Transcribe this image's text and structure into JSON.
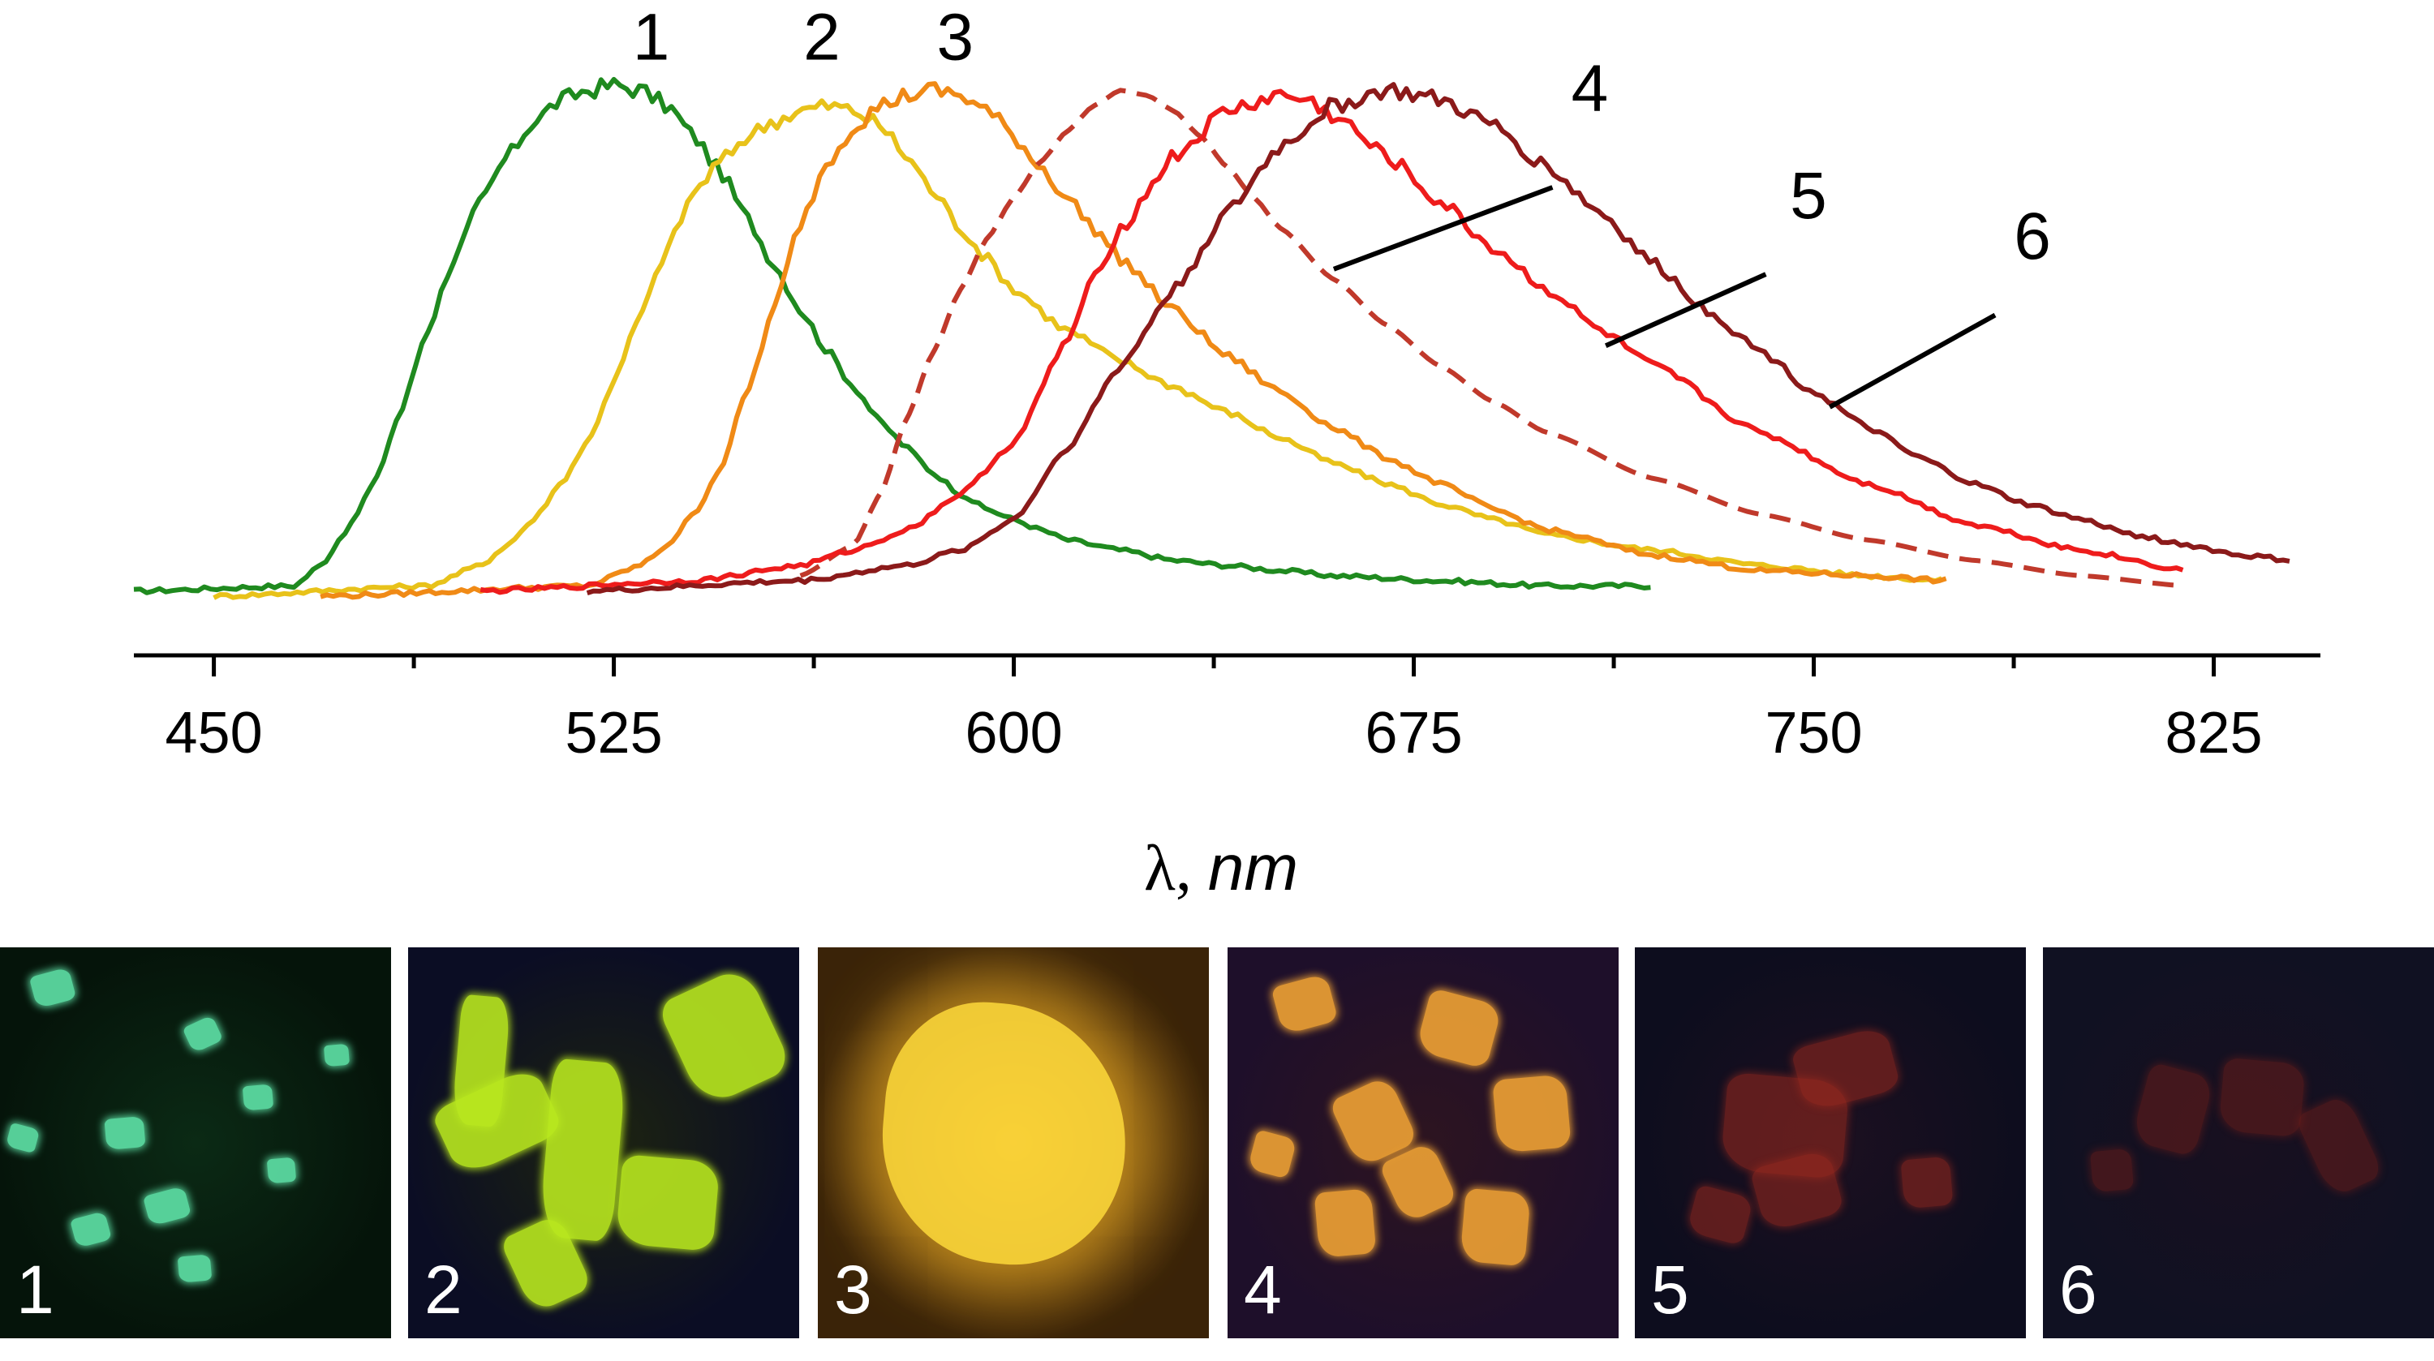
{
  "chart_data": {
    "type": "line",
    "xlabel_symbol": "λ",
    "xlabel_sep": ", ",
    "xlabel_unit": "nm",
    "xlim": [
      435,
      845
    ],
    "ylim": [
      0,
      1.07
    ],
    "x_ticks": [
      450,
      525,
      600,
      675,
      750,
      825
    ],
    "x_tick_labels": [
      "450",
      "525",
      "600",
      "675",
      "750",
      "825"
    ],
    "x_minor_ticks": [
      487.5,
      562.5,
      637.5,
      712.5,
      787.5
    ],
    "series": [
      {
        "name": "1",
        "color": "#1f8a1f",
        "dashed": false,
        "x": [
          435,
          465,
          470,
          475,
          480,
          485,
          490,
          495,
          500,
          505,
          510,
          515,
          520,
          525,
          530,
          535,
          540,
          545,
          550,
          555,
          560,
          565,
          570,
          575,
          580,
          585,
          590,
          595,
          600,
          605,
          610,
          620,
          630,
          640,
          650,
          660,
          680,
          700,
          720
        ],
        "y": [
          0.01,
          0.02,
          0.06,
          0.13,
          0.22,
          0.36,
          0.52,
          0.66,
          0.77,
          0.86,
          0.93,
          0.97,
          0.99,
          1.0,
          0.99,
          0.96,
          0.9,
          0.83,
          0.74,
          0.65,
          0.56,
          0.48,
          0.41,
          0.34,
          0.29,
          0.24,
          0.2,
          0.17,
          0.15,
          0.13,
          0.11,
          0.09,
          0.07,
          0.06,
          0.05,
          0.04,
          0.03,
          0.02,
          0.02
        ]
      },
      {
        "name": "2",
        "color": "#e8c21a",
        "dashed": false,
        "x": [
          450,
          490,
          500,
          505,
          510,
          515,
          520,
          525,
          530,
          535,
          540,
          545,
          550,
          555,
          560,
          565,
          570,
          575,
          580,
          585,
          590,
          595,
          600,
          610,
          620,
          630,
          640,
          650,
          660,
          670,
          680,
          690,
          700,
          720,
          740,
          760,
          775
        ],
        "y": [
          0.0,
          0.02,
          0.06,
          0.1,
          0.15,
          0.22,
          0.3,
          0.42,
          0.55,
          0.68,
          0.79,
          0.85,
          0.9,
          0.93,
          0.95,
          0.96,
          0.95,
          0.92,
          0.86,
          0.79,
          0.72,
          0.66,
          0.6,
          0.52,
          0.46,
          0.41,
          0.36,
          0.31,
          0.26,
          0.22,
          0.18,
          0.15,
          0.12,
          0.09,
          0.06,
          0.04,
          0.03
        ]
      },
      {
        "name": "3",
        "color": "#f08a16",
        "dashed": false,
        "x": [
          470,
          520,
          530,
          535,
          540,
          545,
          550,
          555,
          560,
          565,
          570,
          575,
          580,
          585,
          590,
          595,
          600,
          605,
          610,
          615,
          620,
          630,
          640,
          650,
          660,
          670,
          680,
          690,
          700,
          720,
          740,
          760,
          775
        ],
        "y": [
          0.0,
          0.02,
          0.06,
          0.1,
          0.16,
          0.25,
          0.4,
          0.56,
          0.73,
          0.85,
          0.92,
          0.96,
          0.98,
          0.99,
          0.98,
          0.95,
          0.9,
          0.84,
          0.78,
          0.72,
          0.66,
          0.56,
          0.47,
          0.4,
          0.33,
          0.27,
          0.22,
          0.17,
          0.13,
          0.08,
          0.05,
          0.04,
          0.03
        ]
      },
      {
        "name": "4",
        "color": "#c0392b",
        "dashed": true,
        "x": [
          560,
          570,
          575,
          580,
          585,
          590,
          595,
          600,
          605,
          610,
          615,
          620,
          625,
          630,
          635,
          640,
          645,
          650,
          660,
          670,
          680,
          690,
          700,
          720,
          740,
          760,
          780,
          800,
          820
        ],
        "y": [
          0.04,
          0.1,
          0.2,
          0.35,
          0.48,
          0.6,
          0.7,
          0.78,
          0.85,
          0.91,
          0.96,
          0.99,
          0.98,
          0.95,
          0.9,
          0.84,
          0.78,
          0.72,
          0.62,
          0.53,
          0.45,
          0.38,
          0.32,
          0.23,
          0.16,
          0.11,
          0.07,
          0.04,
          0.02
        ]
      },
      {
        "name": "5",
        "color": "#ee1c1c",
        "dashed": false,
        "x": [
          500,
          540,
          560,
          570,
          580,
          590,
          600,
          610,
          615,
          620,
          630,
          640,
          650,
          655,
          660,
          670,
          680,
          690,
          700,
          710,
          720,
          740,
          760,
          780,
          800,
          820
        ],
        "y": [
          0.01,
          0.03,
          0.06,
          0.09,
          0.13,
          0.2,
          0.3,
          0.5,
          0.62,
          0.72,
          0.86,
          0.95,
          0.98,
          0.97,
          0.94,
          0.86,
          0.77,
          0.68,
          0.6,
          0.52,
          0.45,
          0.32,
          0.22,
          0.14,
          0.09,
          0.05
        ]
      },
      {
        "name": "6",
        "color": "#8b1a1a",
        "dashed": false,
        "x": [
          520,
          560,
          580,
          590,
          600,
          610,
          620,
          630,
          640,
          650,
          660,
          670,
          680,
          690,
          700,
          710,
          720,
          730,
          740,
          750,
          760,
          770,
          780,
          790,
          800,
          810,
          820,
          830,
          840
        ],
        "y": [
          0.01,
          0.03,
          0.06,
          0.09,
          0.15,
          0.29,
          0.45,
          0.6,
          0.75,
          0.88,
          0.96,
          0.99,
          0.97,
          0.92,
          0.84,
          0.75,
          0.65,
          0.56,
          0.48,
          0.4,
          0.33,
          0.27,
          0.22,
          0.18,
          0.15,
          0.12,
          0.1,
          0.08,
          0.07
        ]
      }
    ],
    "curve_labels": [
      {
        "text": "1",
        "x": 532,
        "y": 1.05,
        "leader": null
      },
      {
        "text": "2",
        "x": 564,
        "y": 1.05,
        "leader": null
      },
      {
        "text": "3",
        "x": 589,
        "y": 1.05,
        "leader": null
      },
      {
        "text": "4",
        "x": 708,
        "y": 0.95,
        "leader": [
          [
            660,
            0.64
          ],
          [
            701,
            0.8
          ]
        ]
      },
      {
        "text": "5",
        "x": 749,
        "y": 0.74,
        "leader": [
          [
            711,
            0.49
          ],
          [
            741,
            0.63
          ]
        ]
      },
      {
        "text": "6",
        "x": 791,
        "y": 0.66,
        "leader": [
          [
            753,
            0.37
          ],
          [
            784,
            0.55
          ]
        ]
      }
    ]
  },
  "photos": [
    {
      "label": "1",
      "bg": "#05140a",
      "glow": "#0b2a15",
      "crystal": "#5fe3a8"
    },
    {
      "label": "2",
      "bg": "#0b0d24",
      "glow": "#1d2410",
      "crystal": "#b9e81f"
    },
    {
      "label": "3",
      "bg": "#3a2308",
      "glow": "#c4861d",
      "crystal": "#ffd93a"
    },
    {
      "label": "4",
      "bg": "#1e0f2a",
      "glow": "#2d1420",
      "crystal": "#f0a335"
    },
    {
      "label": "5",
      "bg": "#0d0d1e",
      "glow": "#1c1020",
      "crystal": "#9e2a1e"
    },
    {
      "label": "6",
      "bg": "#101122",
      "glow": "#181020",
      "crystal": "#6a1d1a"
    }
  ]
}
